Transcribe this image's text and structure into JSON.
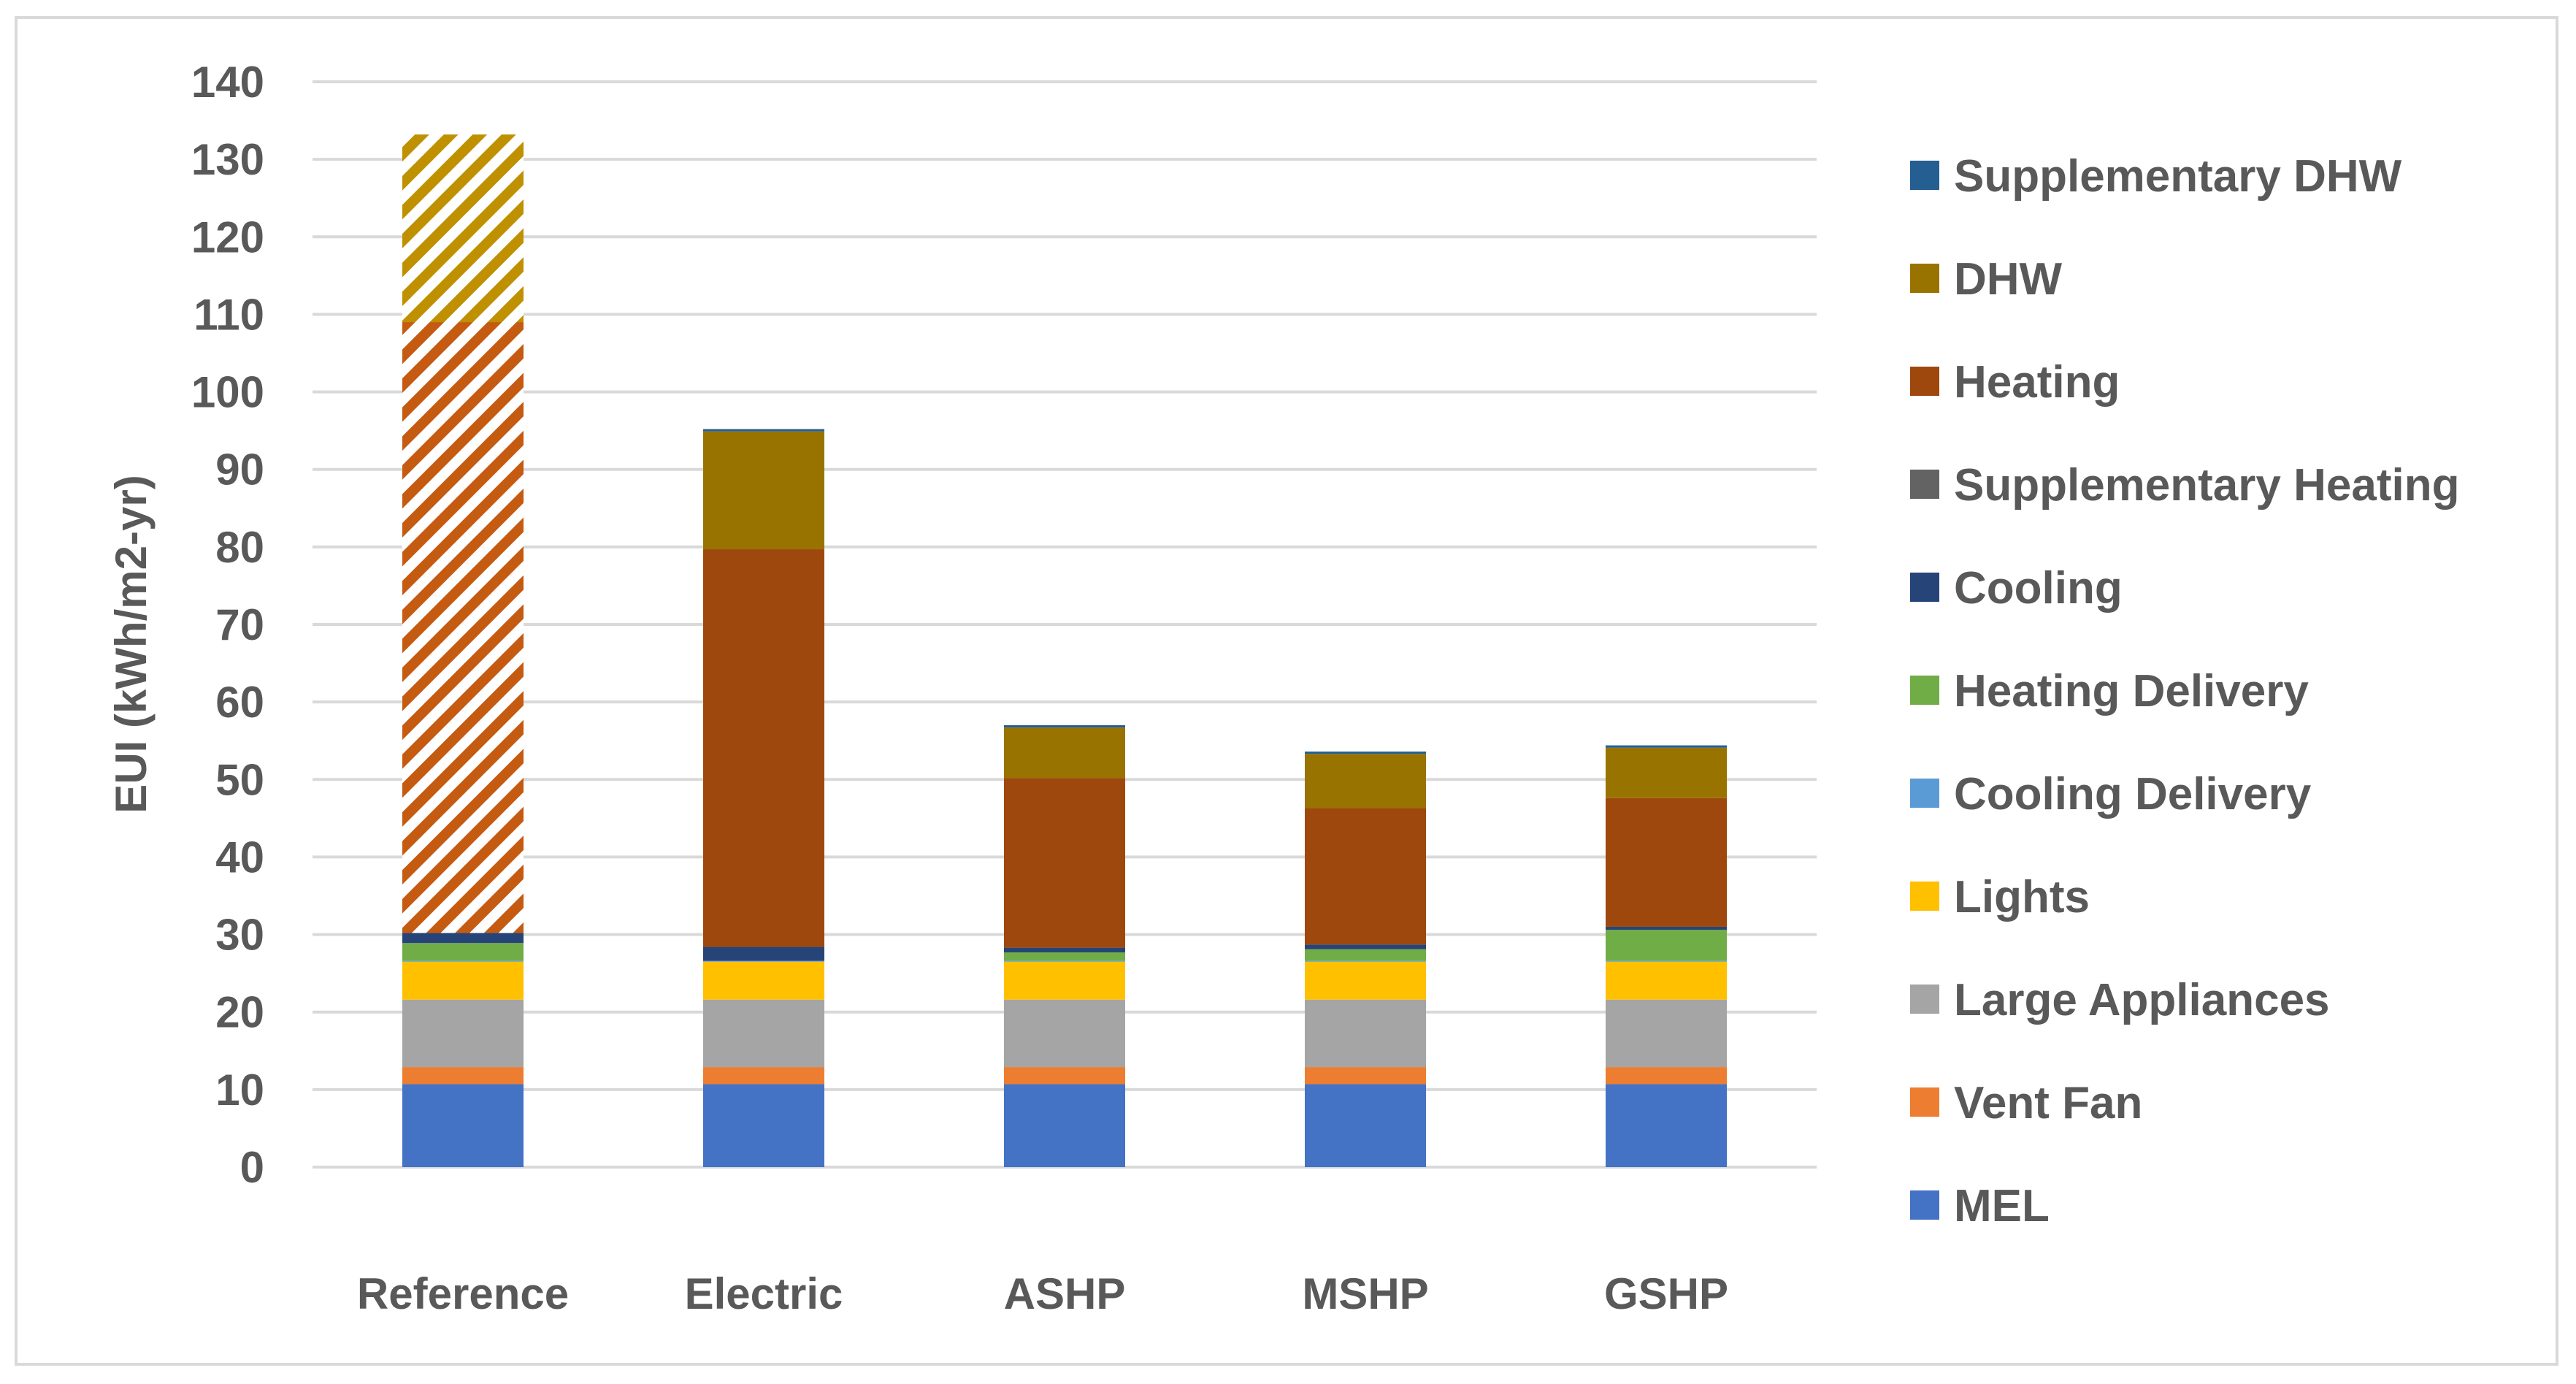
{
  "chart_data": {
    "type": "bar",
    "stacked": true,
    "title": "",
    "xlabel": "",
    "ylabel": "EUI (kWh/m2-yr)",
    "ylim": [
      0,
      140
    ],
    "yticks": [
      0,
      10,
      20,
      30,
      40,
      50,
      60,
      70,
      80,
      90,
      100,
      110,
      120,
      130,
      140
    ],
    "grid": true,
    "legend_position": "right",
    "categories": [
      "Reference",
      "Electric",
      "ASHP",
      "MSHP",
      "GSHP"
    ],
    "series": [
      {
        "name": "MEL",
        "color": "#4472C4",
        "values": [
          10.7,
          10.7,
          10.7,
          10.7,
          10.7
        ]
      },
      {
        "name": "Vent Fan",
        "color": "#ED7D31",
        "values": [
          2.2,
          2.2,
          2.2,
          2.2,
          2.2
        ]
      },
      {
        "name": "Large Appliances",
        "color": "#A5A5A5",
        "values": [
          8.7,
          8.7,
          8.7,
          8.7,
          8.7
        ]
      },
      {
        "name": "Lights",
        "color": "#FFC000",
        "values": [
          4.9,
          4.9,
          4.9,
          4.9,
          4.9
        ]
      },
      {
        "name": "Cooling Delivery",
        "color": "#5B9BD5",
        "values": [
          0.1,
          0.1,
          0.1,
          0.1,
          0.1
        ]
      },
      {
        "name": "Heating Delivery",
        "color": "#70AD47",
        "values": [
          2.3,
          0,
          1.1,
          1.5,
          4.0
        ]
      },
      {
        "name": "Cooling",
        "color": "#264478",
        "values": [
          1.3,
          1.8,
          0.6,
          0.6,
          0.4
        ]
      },
      {
        "name": "Supplementary Heating",
        "color": "#636363",
        "values": [
          0,
          0,
          0,
          0,
          0
        ]
      },
      {
        "name": "Heating",
        "color": "#9E480E",
        "values": [
          78.8,
          51.3,
          21.9,
          17.6,
          16.6
        ],
        "pattern": [
          true,
          false,
          false,
          false,
          false
        ]
      },
      {
        "name": "DHW",
        "color": "#997300",
        "values": [
          24.2,
          15.2,
          6.5,
          7.0,
          6.5
        ],
        "pattern": [
          true,
          false,
          false,
          false,
          false
        ]
      },
      {
        "name": "Supplementary DHW",
        "color": "#255E91",
        "values": [
          0,
          0.3,
          0.3,
          0.3,
          0.3
        ]
      }
    ]
  }
}
